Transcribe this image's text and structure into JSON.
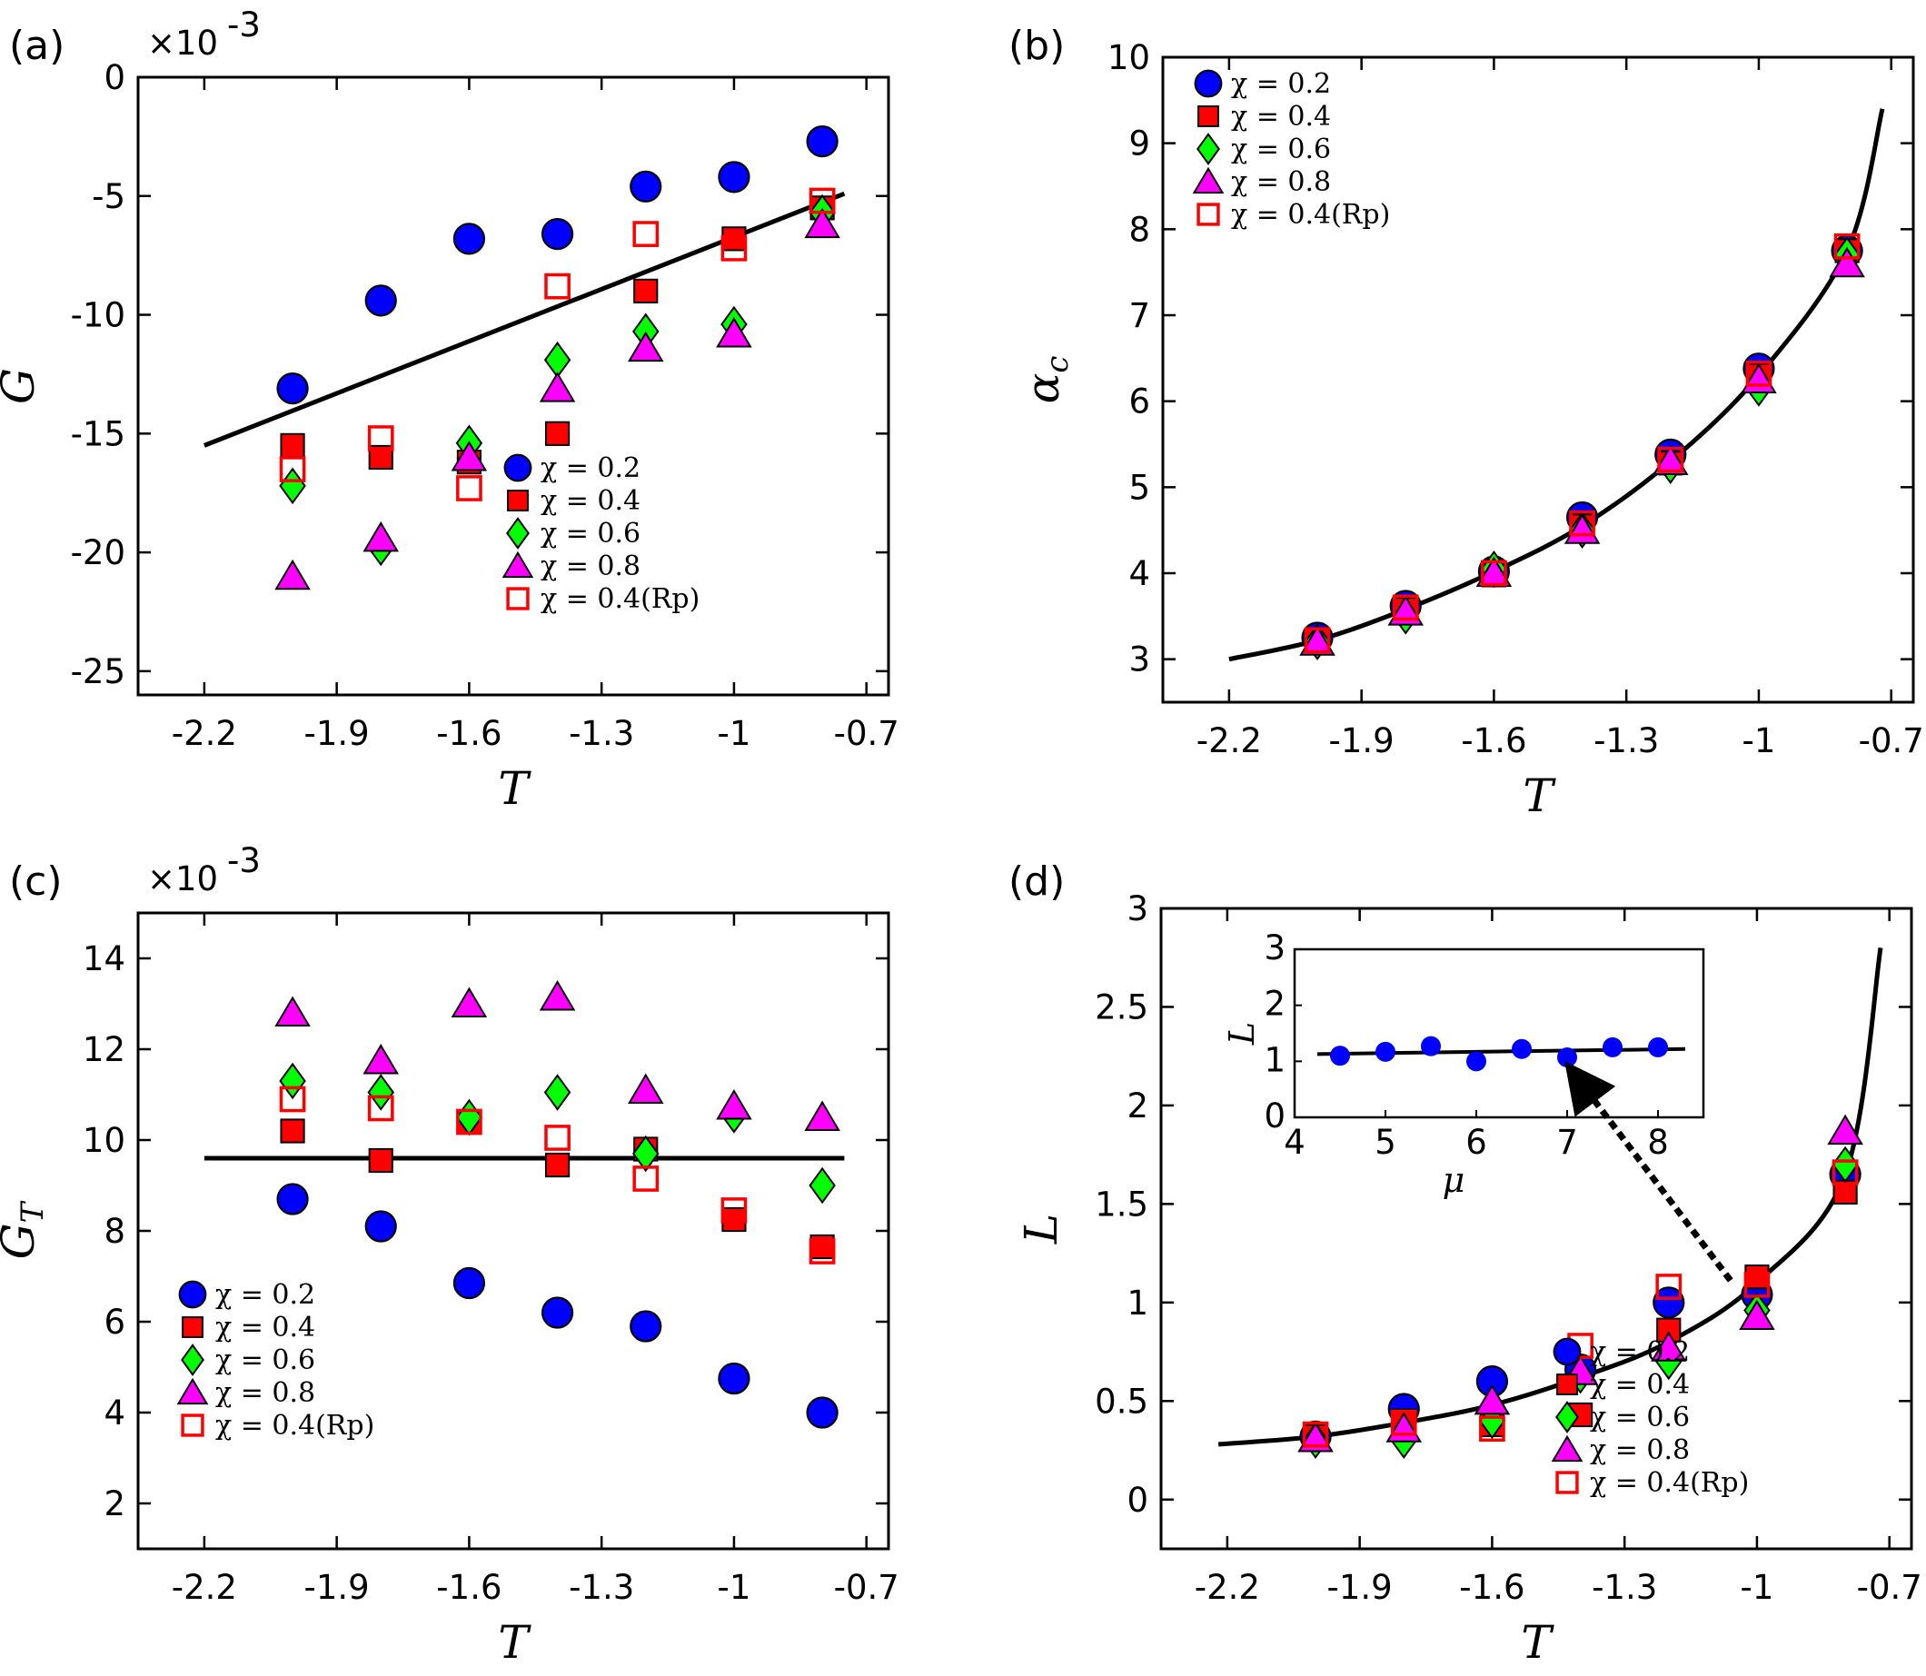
{
  "colors": {
    "chi_0_2": "#0000ff",
    "chi_0_4": "#ff0000",
    "chi_0_6": "#00ff00",
    "chi_0_8": "#ff00ff",
    "chi_0_4_Rp": "#ff0000",
    "fit_line": "#000000"
  },
  "chart_data": [
    {
      "panel": "(a)",
      "type": "scatter",
      "exponent_label": "×10",
      "exponent_power": "-3",
      "xlabel": "T",
      "ylabel": "G",
      "xlim": [
        -2.35,
        -0.65
      ],
      "ylim": [
        -26,
        0
      ],
      "xticks": [
        -2.2,
        -1.9,
        -1.6,
        -1.3,
        -1,
        -0.7
      ],
      "xtick_labels": [
        "-2.2",
        "-1.9",
        "-1.6",
        "-1.3",
        "-1",
        "-0.7"
      ],
      "yticks": [
        0,
        -5,
        -10,
        -15,
        -20,
        -25
      ],
      "ytick_labels": [
        "0",
        "-5",
        "-10",
        "-15",
        "-20",
        "-25"
      ],
      "legend_position": "bottom-right",
      "x": [
        -2.0,
        -1.8,
        -1.6,
        -1.4,
        -1.2,
        -1.0,
        -0.8
      ],
      "series": [
        {
          "name": "χ = 0.2",
          "marker": "circle",
          "values": [
            -13.1,
            -9.4,
            -6.8,
            -6.6,
            -4.6,
            -4.2,
            -2.7
          ]
        },
        {
          "name": "χ = 0.4",
          "marker": "square",
          "values": [
            -15.5,
            -16.0,
            -16.2,
            -15.0,
            -9.0,
            -6.8,
            -5.5
          ]
        },
        {
          "name": "χ = 0.6",
          "marker": "diamond",
          "values": [
            -17.2,
            -19.8,
            -15.4,
            -11.9,
            -10.7,
            -10.4,
            -5.7
          ]
        },
        {
          "name": "χ = 0.8",
          "marker": "triangle",
          "values": [
            -21.0,
            -19.4,
            -16.0,
            -13.1,
            -11.4,
            -10.8,
            -6.2
          ]
        },
        {
          "name": "χ = 0.4(Rp)",
          "marker": "open-square",
          "values": [
            -16.5,
            -15.2,
            -17.3,
            -8.8,
            -6.6,
            -7.2,
            -5.2
          ]
        }
      ],
      "fit": {
        "type": "line",
        "x": [
          -2.2,
          -0.75
        ],
        "y": [
          -15.5,
          -4.9
        ]
      }
    },
    {
      "panel": "(b)",
      "type": "scatter",
      "xlabel": "T",
      "ylabel": "αc",
      "xlim": [
        -2.35,
        -0.65
      ],
      "ylim": [
        2.5,
        10
      ],
      "xticks": [
        -2.2,
        -1.9,
        -1.6,
        -1.3,
        -1,
        -0.7
      ],
      "xtick_labels": [
        "-2.2",
        "-1.9",
        "-1.6",
        "-1.3",
        "-1",
        "-0.7"
      ],
      "yticks": [
        3,
        4,
        5,
        6,
        7,
        8,
        9,
        10
      ],
      "ytick_labels": [
        "3",
        "4",
        "5",
        "6",
        "7",
        "8",
        "9",
        "10"
      ],
      "legend_position": "top-left",
      "x": [
        -2.0,
        -1.8,
        -1.6,
        -1.4,
        -1.2,
        -1.0,
        -0.8
      ],
      "series": [
        {
          "name": "χ = 0.2",
          "marker": "circle",
          "values": [
            3.25,
            3.62,
            4.02,
            4.65,
            5.38,
            6.38,
            7.75
          ]
        },
        {
          "name": "χ = 0.4",
          "marker": "square",
          "values": [
            3.22,
            3.58,
            3.98,
            4.55,
            5.28,
            6.3,
            7.75
          ]
        },
        {
          "name": "χ = 0.6",
          "marker": "diamond",
          "values": [
            3.2,
            3.5,
            4.05,
            4.5,
            5.25,
            6.15,
            7.7
          ]
        },
        {
          "name": "χ = 0.8",
          "marker": "triangle",
          "values": [
            3.2,
            3.55,
            4.0,
            4.5,
            5.3,
            6.25,
            7.6
          ]
        },
        {
          "name": "χ = 0.4(Rp)",
          "marker": "open-square",
          "values": [
            3.22,
            3.6,
            4.0,
            4.58,
            5.32,
            6.32,
            7.8
          ]
        }
      ],
      "fit": {
        "type": "curve",
        "x": [
          -2.2,
          -2.0,
          -1.8,
          -1.6,
          -1.4,
          -1.2,
          -1.0,
          -0.8,
          -0.72
        ],
        "y": [
          3.0,
          3.22,
          3.58,
          4.02,
          4.55,
          5.3,
          6.3,
          7.75,
          9.4
        ]
      }
    },
    {
      "panel": "(c)",
      "type": "scatter",
      "exponent_label": "×10",
      "exponent_power": "-3",
      "xlabel": "T",
      "ylabel": "GT",
      "xlim": [
        -2.35,
        -0.65
      ],
      "ylim": [
        1,
        15
      ],
      "xticks": [
        -2.2,
        -1.9,
        -1.6,
        -1.3,
        -1,
        -0.7
      ],
      "xtick_labels": [
        "-2.2",
        "-1.9",
        "-1.6",
        "-1.3",
        "-1",
        "-0.7"
      ],
      "yticks": [
        2,
        4,
        6,
        8,
        10,
        12,
        14
      ],
      "ytick_labels": [
        "2",
        "4",
        "6",
        "8",
        "10",
        "12",
        "14"
      ],
      "legend_position": "bottom-left",
      "x": [
        -2.0,
        -1.8,
        -1.6,
        -1.4,
        -1.2,
        -1.0,
        -0.8
      ],
      "series": [
        {
          "name": "χ = 0.2",
          "marker": "circle",
          "values": [
            8.7,
            8.1,
            6.85,
            6.2,
            5.9,
            4.75,
            4.0
          ]
        },
        {
          "name": "χ = 0.4",
          "marker": "square",
          "values": [
            10.2,
            9.55,
            10.4,
            9.45,
            9.8,
            8.25,
            7.65
          ]
        },
        {
          "name": "χ = 0.6",
          "marker": "diamond",
          "values": [
            11.3,
            11.05,
            10.5,
            11.05,
            9.7,
            10.55,
            9.0
          ]
        },
        {
          "name": "χ = 0.8",
          "marker": "triangle",
          "values": [
            12.8,
            11.75,
            13.0,
            13.15,
            11.1,
            10.75,
            10.5
          ]
        },
        {
          "name": "χ = 0.4(Rp)",
          "marker": "open-square",
          "values": [
            10.9,
            10.7,
            10.4,
            10.05,
            9.15,
            8.45,
            7.55
          ]
        }
      ],
      "fit": {
        "type": "line",
        "x": [
          -2.2,
          -0.75
        ],
        "y": [
          9.6,
          9.6
        ]
      }
    },
    {
      "panel": "(d)",
      "type": "scatter",
      "xlabel": "T",
      "ylabel": "L",
      "xlim": [
        -2.35,
        -0.65
      ],
      "ylim": [
        -0.25,
        3
      ],
      "xticks": [
        -2.2,
        -1.9,
        -1.6,
        -1.3,
        -1,
        -0.7
      ],
      "xtick_labels": [
        "-2.2",
        "-1.9",
        "-1.6",
        "-1.3",
        "-1",
        "-0.7"
      ],
      "yticks": [
        0,
        0.5,
        1,
        1.5,
        2,
        2.5,
        3
      ],
      "ytick_labels": [
        "0",
        "0.5",
        "1",
        "1.5",
        "2",
        "2.5",
        "3"
      ],
      "legend_position": "bottom-right",
      "x": [
        -2.0,
        -1.8,
        -1.6,
        -1.4,
        -1.2,
        -1.0,
        -0.8
      ],
      "series": [
        {
          "name": "χ = 0.2",
          "marker": "circle",
          "values": [
            0.32,
            0.46,
            0.6,
            0.66,
            1.0,
            1.04,
            1.65
          ]
        },
        {
          "name": "χ = 0.4",
          "marker": "square",
          "values": [
            0.32,
            0.4,
            0.38,
            0.43,
            0.86,
            1.13,
            1.56
          ]
        },
        {
          "name": "χ = 0.6",
          "marker": "diamond",
          "values": [
            0.3,
            0.3,
            0.4,
            0.63,
            0.7,
            0.96,
            1.7
          ]
        },
        {
          "name": "χ = 0.8",
          "marker": "triangle",
          "values": [
            0.31,
            0.36,
            0.5,
            0.65,
            0.77,
            0.93,
            1.87
          ]
        },
        {
          "name": "χ = 0.4(Rp)",
          "marker": "open-square",
          "values": [
            0.33,
            0.39,
            0.36,
            0.78,
            1.08,
            1.09,
            1.66
          ]
        }
      ],
      "fit": {
        "type": "curve",
        "x": [
          -2.22,
          -2.0,
          -1.8,
          -1.6,
          -1.4,
          -1.2,
          -1.0,
          -0.8,
          -0.72
        ],
        "y": [
          0.28,
          0.32,
          0.39,
          0.48,
          0.62,
          0.8,
          1.1,
          1.65,
          2.8
        ]
      },
      "inset": {
        "type": "scatter",
        "xlabel": "μ",
        "ylabel": "L",
        "xlim": [
          4,
          8.5
        ],
        "ylim": [
          0,
          3
        ],
        "xticks": [
          4,
          5,
          6,
          7,
          8
        ],
        "xtick_labels": [
          "4",
          "5",
          "6",
          "7",
          "8"
        ],
        "yticks": [
          0,
          1,
          2,
          3
        ],
        "ytick_labels": [
          "0",
          "1",
          "2",
          "3"
        ],
        "x": [
          4.5,
          5.0,
          5.5,
          6.0,
          6.5,
          7.0,
          7.5,
          8.0
        ],
        "values": [
          1.1,
          1.17,
          1.27,
          1.0,
          1.22,
          1.07,
          1.25,
          1.25
        ],
        "fit": {
          "x": [
            4.25,
            8.3
          ],
          "y": [
            1.13,
            1.22
          ]
        },
        "arrow": {
          "from_T": -1.06,
          "from_L": 1.02,
          "to_mu": 7.08,
          "to_L": 1.0
        }
      }
    }
  ]
}
